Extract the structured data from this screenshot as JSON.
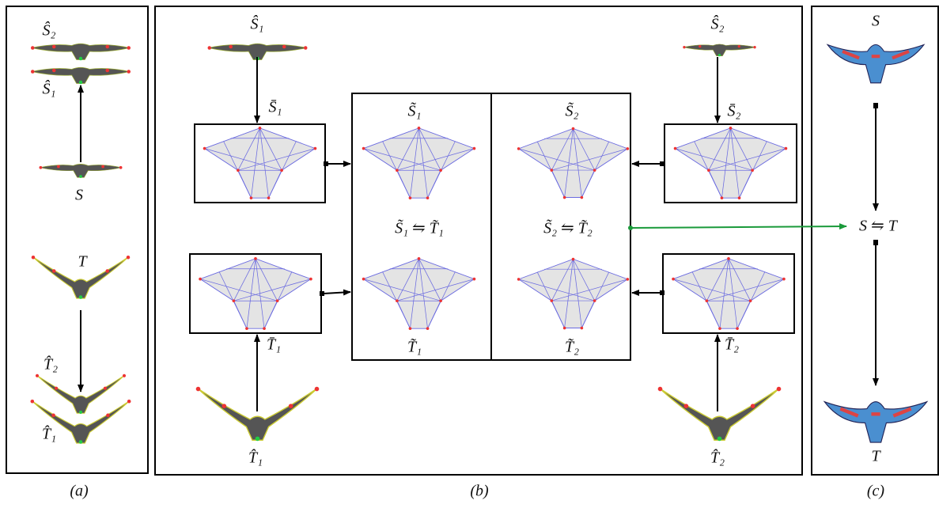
{
  "panel_a": {
    "labels": [
      "Ŝ₂",
      "Ŝ₁",
      "S",
      "T",
      "T̂₂",
      "T̂₁"
    ],
    "caption": "(a)"
  },
  "panel_b": {
    "labels": [
      "Ŝ₁",
      "S̄₁",
      "Ŝ₂",
      "S̄₂",
      "S̃₁",
      "S̃₂",
      "S̃₁ ⇋ T̃₁",
      "S̃₂ ⇋ T̃₂",
      "T̃₁",
      "T̃₂",
      "T̄₁",
      "T̄₂",
      "T̂₁",
      "T̂₂"
    ],
    "caption": "(b)"
  },
  "panel_c": {
    "labels": [
      "S",
      "S ⇋ T",
      "T"
    ],
    "caption": "(c)"
  }
}
